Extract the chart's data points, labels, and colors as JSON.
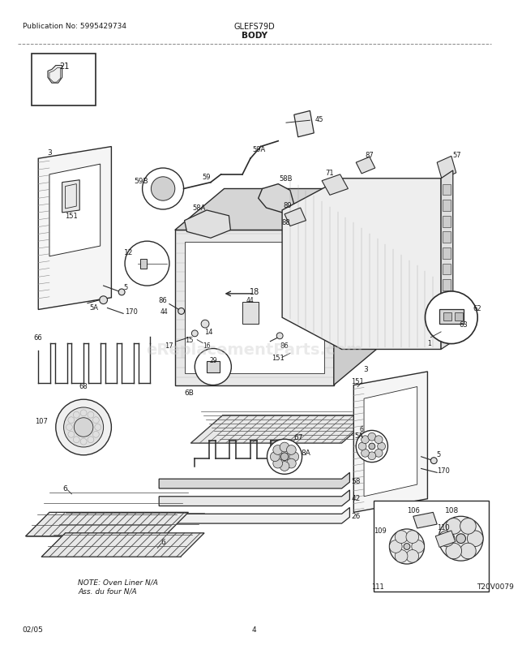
{
  "title": "BODY",
  "pub_no": "Publication No: 5995429734",
  "model": "GLEFS79D",
  "date": "02/05",
  "page": "4",
  "diagram_id": "T20V0079",
  "bg_color": "#ffffff",
  "line_color": "#2a2a2a",
  "text_color": "#1a1a1a",
  "note_text": "NOTE: Oven Liner N/A\nAss. du four N/A",
  "watermark": "eReplacementParts.com"
}
